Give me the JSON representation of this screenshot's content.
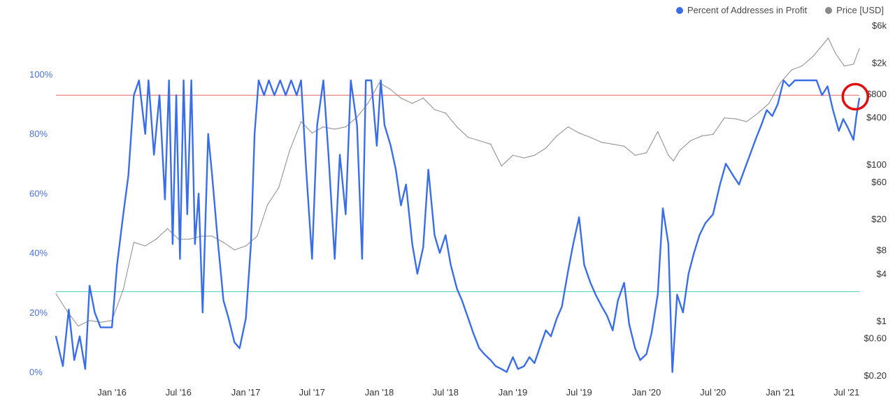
{
  "legend": {
    "items": [
      {
        "label": "Percent of Addresses in Profit",
        "color": "#3a6ee8"
      },
      {
        "label": "Price [USD]",
        "color": "#8a8a8a"
      }
    ]
  },
  "chart_data": {
    "type": "line",
    "title": "",
    "xlabel": "",
    "ylabel": "",
    "x_range": [
      "2015-08-01",
      "2021-08-05"
    ],
    "x_ticks": [
      "Jan '16",
      "Jul '16",
      "Jan '17",
      "Jul '17",
      "Jan '18",
      "Jul '18",
      "Jan '19",
      "Jul '19",
      "Jan '20",
      "Jul '20",
      "Jan '21",
      "Jul '21"
    ],
    "x_tick_dates": [
      "2016-01-01",
      "2016-07-01",
      "2017-01-01",
      "2017-07-01",
      "2018-01-01",
      "2018-07-01",
      "2019-01-01",
      "2019-07-01",
      "2020-01-01",
      "2020-07-01",
      "2021-01-01",
      "2021-07-01"
    ],
    "y_left": {
      "ticks": [
        "0%",
        "20%",
        "40%",
        "60%",
        "80%",
        "100%"
      ],
      "tick_values": [
        0,
        20,
        40,
        60,
        80,
        100
      ],
      "range": [
        0,
        100
      ]
    },
    "y_right": {
      "scale": "log",
      "ticks": [
        "$0.20",
        "$0.60",
        "$1",
        "$4",
        "$8",
        "$20",
        "$60",
        "$100",
        "$400",
        "$800",
        "$2k",
        "$6k"
      ],
      "tick_values": [
        0.2,
        0.6,
        1,
        4,
        8,
        20,
        60,
        100,
        400,
        800,
        2000,
        6000
      ]
    },
    "reference_lines": [
      {
        "axis": "left",
        "value": 95,
        "color": "#e87878"
      },
      {
        "axis": "left",
        "value": 29,
        "color": "#5fd6c0"
      }
    ],
    "highlight": {
      "date": "2021-07-25",
      "value_percent": 94.5,
      "color": "#e01010"
    },
    "series": [
      {
        "name": "Percent of Addresses in Profit",
        "axis": "left",
        "color": "#3a6ee8",
        "points": [
          [
            "2015-08-01",
            14
          ],
          [
            "2015-08-20",
            4
          ],
          [
            "2015-09-05",
            23
          ],
          [
            "2015-09-20",
            6
          ],
          [
            "2015-10-05",
            14
          ],
          [
            "2015-10-20",
            3
          ],
          [
            "2015-11-01",
            31
          ],
          [
            "2015-11-15",
            22
          ],
          [
            "2015-12-01",
            17
          ],
          [
            "2015-12-15",
            17
          ],
          [
            "2016-01-01",
            17
          ],
          [
            "2016-01-15",
            38
          ],
          [
            "2016-02-01",
            55
          ],
          [
            "2016-02-15",
            68
          ],
          [
            "2016-03-01",
            95
          ],
          [
            "2016-03-15",
            100
          ],
          [
            "2016-04-01",
            82
          ],
          [
            "2016-04-10",
            100
          ],
          [
            "2016-04-25",
            75
          ],
          [
            "2016-05-10",
            95
          ],
          [
            "2016-05-25",
            60
          ],
          [
            "2016-06-05",
            100
          ],
          [
            "2016-06-15",
            45
          ],
          [
            "2016-06-25",
            95
          ],
          [
            "2016-07-05",
            40
          ],
          [
            "2016-07-15",
            100
          ],
          [
            "2016-07-25",
            55
          ],
          [
            "2016-08-05",
            100
          ],
          [
            "2016-08-15",
            45
          ],
          [
            "2016-08-25",
            62
          ],
          [
            "2016-09-05",
            22
          ],
          [
            "2016-09-20",
            82
          ],
          [
            "2016-10-01",
            68
          ],
          [
            "2016-10-15",
            48
          ],
          [
            "2016-11-01",
            26
          ],
          [
            "2016-11-15",
            20
          ],
          [
            "2016-12-01",
            12
          ],
          [
            "2016-12-15",
            10
          ],
          [
            "2017-01-01",
            20
          ],
          [
            "2017-01-15",
            45
          ],
          [
            "2017-01-25",
            82
          ],
          [
            "2017-02-05",
            100
          ],
          [
            "2017-02-20",
            95
          ],
          [
            "2017-03-05",
            100
          ],
          [
            "2017-03-20",
            95
          ],
          [
            "2017-04-05",
            100
          ],
          [
            "2017-04-20",
            95
          ],
          [
            "2017-05-05",
            100
          ],
          [
            "2017-05-20",
            95
          ],
          [
            "2017-06-01",
            100
          ],
          [
            "2017-06-15",
            70
          ],
          [
            "2017-07-01",
            40
          ],
          [
            "2017-07-15",
            85
          ],
          [
            "2017-08-01",
            100
          ],
          [
            "2017-08-15",
            75
          ],
          [
            "2017-09-01",
            40
          ],
          [
            "2017-09-15",
            75
          ],
          [
            "2017-10-01",
            55
          ],
          [
            "2017-10-15",
            100
          ],
          [
            "2017-11-01",
            85
          ],
          [
            "2017-11-15",
            40
          ],
          [
            "2017-11-25",
            100
          ],
          [
            "2017-12-10",
            100
          ],
          [
            "2017-12-25",
            78
          ],
          [
            "2018-01-05",
            100
          ],
          [
            "2018-01-15",
            85
          ],
          [
            "2018-02-01",
            78
          ],
          [
            "2018-02-15",
            70
          ],
          [
            "2018-03-01",
            58
          ],
          [
            "2018-03-15",
            65
          ],
          [
            "2018-04-01",
            45
          ],
          [
            "2018-04-15",
            35
          ],
          [
            "2018-05-01",
            44
          ],
          [
            "2018-05-15",
            70
          ],
          [
            "2018-06-01",
            48
          ],
          [
            "2018-06-15",
            42
          ],
          [
            "2018-07-01",
            48
          ],
          [
            "2018-07-15",
            38
          ],
          [
            "2018-08-01",
            30
          ],
          [
            "2018-08-15",
            26
          ],
          [
            "2018-09-01",
            20
          ],
          [
            "2018-09-15",
            15
          ],
          [
            "2018-10-01",
            10
          ],
          [
            "2018-10-15",
            8
          ],
          [
            "2018-11-01",
            6
          ],
          [
            "2018-11-15",
            4
          ],
          [
            "2018-12-01",
            3
          ],
          [
            "2018-12-15",
            2
          ],
          [
            "2019-01-01",
            7
          ],
          [
            "2019-01-15",
            3
          ],
          [
            "2019-02-01",
            4
          ],
          [
            "2019-02-15",
            7
          ],
          [
            "2019-03-01",
            5
          ],
          [
            "2019-03-15",
            10
          ],
          [
            "2019-04-01",
            16
          ],
          [
            "2019-04-15",
            14
          ],
          [
            "2019-05-01",
            20
          ],
          [
            "2019-05-15",
            24
          ],
          [
            "2019-06-01",
            36
          ],
          [
            "2019-06-15",
            45
          ],
          [
            "2019-07-01",
            54
          ],
          [
            "2019-07-15",
            38
          ],
          [
            "2019-08-01",
            32
          ],
          [
            "2019-08-15",
            28
          ],
          [
            "2019-09-01",
            24
          ],
          [
            "2019-09-15",
            21
          ],
          [
            "2019-10-01",
            16
          ],
          [
            "2019-10-15",
            26
          ],
          [
            "2019-11-01",
            32
          ],
          [
            "2019-11-15",
            18
          ],
          [
            "2019-12-01",
            10
          ],
          [
            "2019-12-15",
            6
          ],
          [
            "2020-01-01",
            8
          ],
          [
            "2020-01-15",
            15
          ],
          [
            "2020-02-01",
            28
          ],
          [
            "2020-02-15",
            57
          ],
          [
            "2020-03-01",
            45
          ],
          [
            "2020-03-12",
            2
          ],
          [
            "2020-03-25",
            28
          ],
          [
            "2020-04-10",
            22
          ],
          [
            "2020-04-25",
            35
          ],
          [
            "2020-05-10",
            42
          ],
          [
            "2020-05-25",
            48
          ],
          [
            "2020-06-10",
            52
          ],
          [
            "2020-07-01",
            55
          ],
          [
            "2020-07-20",
            65
          ],
          [
            "2020-08-05",
            72
          ],
          [
            "2020-08-25",
            68
          ],
          [
            "2020-09-10",
            65
          ],
          [
            "2020-09-25",
            70
          ],
          [
            "2020-10-10",
            75
          ],
          [
            "2020-10-25",
            80
          ],
          [
            "2020-11-10",
            85
          ],
          [
            "2020-11-25",
            90
          ],
          [
            "2020-12-10",
            88
          ],
          [
            "2020-12-25",
            92
          ],
          [
            "2021-01-10",
            100
          ],
          [
            "2021-01-25",
            98
          ],
          [
            "2021-02-10",
            100
          ],
          [
            "2021-03-01",
            100
          ],
          [
            "2021-03-20",
            100
          ],
          [
            "2021-04-10",
            100
          ],
          [
            "2021-04-25",
            95
          ],
          [
            "2021-05-10",
            98
          ],
          [
            "2021-05-25",
            90
          ],
          [
            "2021-06-10",
            83
          ],
          [
            "2021-06-22",
            87
          ],
          [
            "2021-07-05",
            84
          ],
          [
            "2021-07-20",
            80
          ],
          [
            "2021-07-28",
            88
          ],
          [
            "2021-08-05",
            94
          ]
        ]
      },
      {
        "name": "Price [USD]",
        "axis": "right",
        "color": "#8a8a8a",
        "points": [
          [
            "2015-08-01",
            2.2
          ],
          [
            "2015-09-01",
            1.3
          ],
          [
            "2015-10-01",
            0.85
          ],
          [
            "2015-11-01",
            1.0
          ],
          [
            "2015-12-01",
            0.95
          ],
          [
            "2016-01-01",
            1.0
          ],
          [
            "2016-02-01",
            2.5
          ],
          [
            "2016-03-01",
            10
          ],
          [
            "2016-04-01",
            9
          ],
          [
            "2016-05-01",
            11
          ],
          [
            "2016-06-01",
            15
          ],
          [
            "2016-07-01",
            11
          ],
          [
            "2016-08-01",
            11
          ],
          [
            "2016-09-01",
            12
          ],
          [
            "2016-10-01",
            12
          ],
          [
            "2016-11-01",
            10
          ],
          [
            "2016-12-01",
            8
          ],
          [
            "2017-01-01",
            9
          ],
          [
            "2017-02-01",
            12
          ],
          [
            "2017-03-01",
            30
          ],
          [
            "2017-04-01",
            50
          ],
          [
            "2017-05-01",
            150
          ],
          [
            "2017-06-01",
            350
          ],
          [
            "2017-07-01",
            250
          ],
          [
            "2017-08-01",
            300
          ],
          [
            "2017-09-01",
            280
          ],
          [
            "2017-10-01",
            300
          ],
          [
            "2017-11-01",
            400
          ],
          [
            "2017-12-01",
            600
          ],
          [
            "2018-01-01",
            1100
          ],
          [
            "2018-02-01",
            900
          ],
          [
            "2018-03-01",
            700
          ],
          [
            "2018-04-01",
            600
          ],
          [
            "2018-05-01",
            700
          ],
          [
            "2018-06-01",
            500
          ],
          [
            "2018-07-01",
            450
          ],
          [
            "2018-08-01",
            300
          ],
          [
            "2018-09-01",
            220
          ],
          [
            "2018-10-01",
            200
          ],
          [
            "2018-11-01",
            180
          ],
          [
            "2018-12-01",
            95
          ],
          [
            "2019-01-01",
            130
          ],
          [
            "2019-02-01",
            120
          ],
          [
            "2019-03-01",
            130
          ],
          [
            "2019-04-01",
            160
          ],
          [
            "2019-05-01",
            230
          ],
          [
            "2019-06-01",
            300
          ],
          [
            "2019-07-01",
            250
          ],
          [
            "2019-08-01",
            220
          ],
          [
            "2019-09-01",
            190
          ],
          [
            "2019-10-01",
            180
          ],
          [
            "2019-11-01",
            170
          ],
          [
            "2019-12-01",
            130
          ],
          [
            "2020-01-01",
            140
          ],
          [
            "2020-02-01",
            260
          ],
          [
            "2020-03-01",
            130
          ],
          [
            "2020-03-15",
            110
          ],
          [
            "2020-04-01",
            150
          ],
          [
            "2020-05-01",
            200
          ],
          [
            "2020-06-01",
            230
          ],
          [
            "2020-07-01",
            240
          ],
          [
            "2020-08-01",
            390
          ],
          [
            "2020-09-01",
            380
          ],
          [
            "2020-10-01",
            350
          ],
          [
            "2020-11-01",
            450
          ],
          [
            "2020-12-01",
            600
          ],
          [
            "2021-01-01",
            1100
          ],
          [
            "2021-02-01",
            1600
          ],
          [
            "2021-03-01",
            1800
          ],
          [
            "2021-04-01",
            2400
          ],
          [
            "2021-05-12",
            4100
          ],
          [
            "2021-06-01",
            2600
          ],
          [
            "2021-06-25",
            1800
          ],
          [
            "2021-07-20",
            1900
          ],
          [
            "2021-08-05",
            3000
          ]
        ]
      }
    ]
  }
}
